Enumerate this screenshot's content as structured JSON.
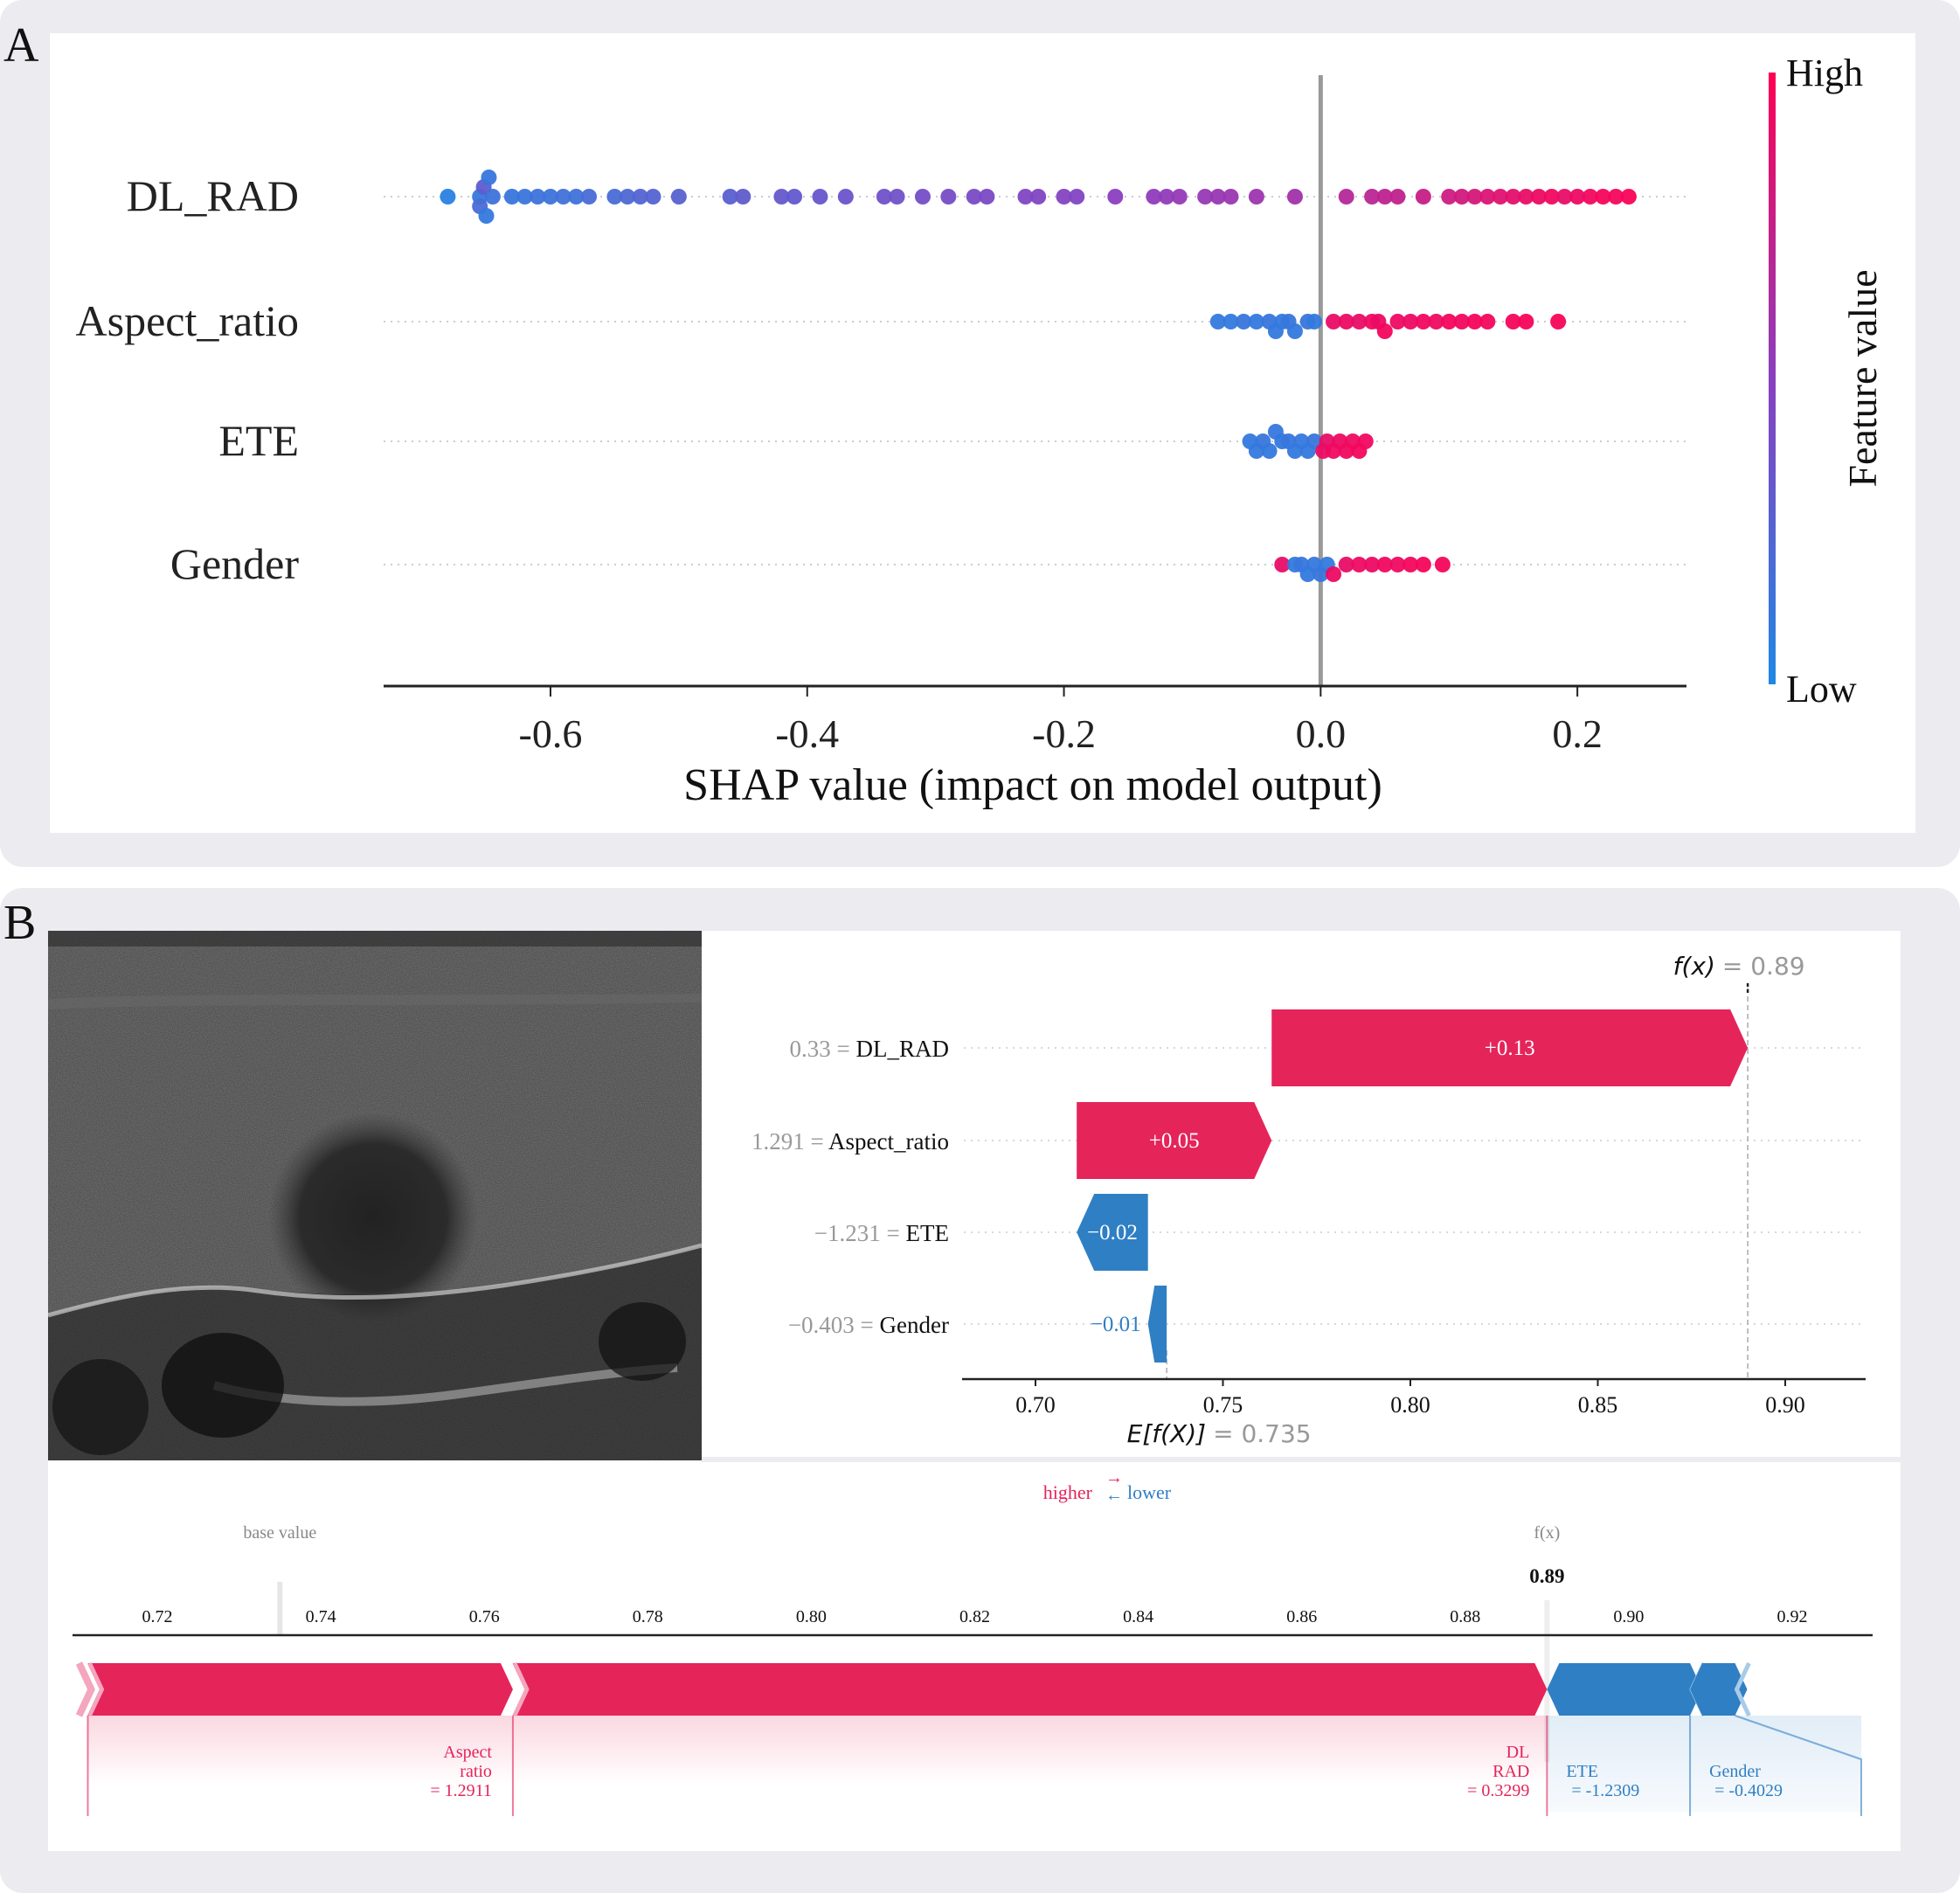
{
  "panel_a": {
    "letter": "A"
  },
  "panel_b": {
    "letter": "B"
  },
  "chart_data": [
    {
      "type": "scatter",
      "subtype": "shap-beeswarm",
      "xlabel": "SHAP value (impact on model output)",
      "xlim": [
        -0.73,
        0.285
      ],
      "xticks": [
        -0.6,
        -0.4,
        -0.2,
        0.0,
        0.2
      ],
      "xtick_labels": [
        "-0.6",
        "-0.4",
        "-0.2",
        "0.0",
        "0.2"
      ],
      "features": [
        "DL_RAD",
        "Aspect_ratio",
        "ETE",
        "Gender"
      ],
      "colorbar": {
        "label": "Feature value",
        "high": "High",
        "low": "Low",
        "high_color": "#ff0052",
        "low_color": "#1e88e5"
      },
      "series": [
        {
          "feature": "DL_RAD",
          "points": [
            [
              -0.68,
              0.05
            ],
            [
              -0.655,
              0.1
            ],
            [
              -0.655,
              0.2
            ],
            [
              -0.652,
              0.3
            ],
            [
              -0.65,
              0.1
            ],
            [
              -0.648,
              0.12
            ],
            [
              -0.645,
              0.15
            ],
            [
              -0.63,
              0.12
            ],
            [
              -0.62,
              0.13
            ],
            [
              -0.61,
              0.15
            ],
            [
              -0.6,
              0.14
            ],
            [
              -0.59,
              0.16
            ],
            [
              -0.58,
              0.15
            ],
            [
              -0.57,
              0.2
            ],
            [
              -0.55,
              0.2
            ],
            [
              -0.54,
              0.22
            ],
            [
              -0.53,
              0.24
            ],
            [
              -0.52,
              0.25
            ],
            [
              -0.5,
              0.27
            ],
            [
              -0.46,
              0.28
            ],
            [
              -0.45,
              0.3
            ],
            [
              -0.42,
              0.33
            ],
            [
              -0.41,
              0.32
            ],
            [
              -0.39,
              0.34
            ],
            [
              -0.37,
              0.36
            ],
            [
              -0.34,
              0.38
            ],
            [
              -0.33,
              0.38
            ],
            [
              -0.31,
              0.4
            ],
            [
              -0.29,
              0.41
            ],
            [
              -0.27,
              0.42
            ],
            [
              -0.26,
              0.43
            ],
            [
              -0.23,
              0.45
            ],
            [
              -0.22,
              0.46
            ],
            [
              -0.2,
              0.47
            ],
            [
              -0.19,
              0.46
            ],
            [
              -0.16,
              0.5
            ],
            [
              -0.13,
              0.52
            ],
            [
              -0.12,
              0.53
            ],
            [
              -0.11,
              0.54
            ],
            [
              -0.09,
              0.55
            ],
            [
              -0.08,
              0.56
            ],
            [
              -0.07,
              0.57
            ],
            [
              -0.05,
              0.58
            ],
            [
              -0.02,
              0.6
            ],
            [
              0.02,
              0.68
            ],
            [
              0.04,
              0.7
            ],
            [
              0.05,
              0.72
            ],
            [
              0.06,
              0.73
            ],
            [
              0.08,
              0.76
            ],
            [
              0.1,
              0.78
            ],
            [
              0.11,
              0.8
            ],
            [
              0.12,
              0.82
            ],
            [
              0.13,
              0.84
            ],
            [
              0.14,
              0.86
            ],
            [
              0.15,
              0.88
            ],
            [
              0.16,
              0.9
            ],
            [
              0.17,
              0.92
            ],
            [
              0.18,
              0.94
            ],
            [
              0.19,
              0.9
            ],
            [
              0.2,
              0.92
            ],
            [
              0.21,
              0.94
            ],
            [
              0.22,
              0.96
            ],
            [
              0.23,
              0.95
            ],
            [
              0.24,
              0.97
            ]
          ]
        },
        {
          "feature": "Aspect_ratio",
          "points": [
            [
              -0.08,
              0.1
            ],
            [
              -0.07,
              0.1
            ],
            [
              -0.06,
              0.12
            ],
            [
              -0.05,
              0.1
            ],
            [
              -0.04,
              0.12
            ],
            [
              -0.035,
              0.1
            ],
            [
              -0.03,
              0.1
            ],
            [
              -0.025,
              0.12
            ],
            [
              -0.02,
              0.1
            ],
            [
              -0.01,
              0.12
            ],
            [
              -0.005,
              0.1
            ],
            [
              0.01,
              0.9
            ],
            [
              0.02,
              0.92
            ],
            [
              0.03,
              0.9
            ],
            [
              0.04,
              0.93
            ],
            [
              0.045,
              0.92
            ],
            [
              0.05,
              0.95
            ],
            [
              0.06,
              0.93
            ],
            [
              0.07,
              0.92
            ],
            [
              0.08,
              0.94
            ],
            [
              0.09,
              0.93
            ],
            [
              0.1,
              0.95
            ],
            [
              0.11,
              0.94
            ],
            [
              0.12,
              0.96
            ],
            [
              0.13,
              0.95
            ],
            [
              0.15,
              0.96
            ],
            [
              0.16,
              0.97
            ],
            [
              0.185,
              0.97
            ]
          ]
        },
        {
          "feature": "ETE",
          "points": [
            [
              -0.055,
              0.1
            ],
            [
              -0.05,
              0.1
            ],
            [
              -0.045,
              0.12
            ],
            [
              -0.04,
              0.1
            ],
            [
              -0.035,
              0.11
            ],
            [
              -0.03,
              0.1
            ],
            [
              -0.025,
              0.12
            ],
            [
              -0.02,
              0.1
            ],
            [
              -0.015,
              0.11
            ],
            [
              -0.01,
              0.1
            ],
            [
              -0.005,
              0.12
            ],
            [
              0.002,
              0.92
            ],
            [
              0.005,
              0.9
            ],
            [
              0.01,
              0.93
            ],
            [
              0.015,
              0.92
            ],
            [
              0.02,
              0.94
            ],
            [
              0.025,
              0.93
            ],
            [
              0.03,
              0.95
            ],
            [
              0.035,
              0.94
            ]
          ]
        },
        {
          "feature": "Gender",
          "points": [
            [
              -0.03,
              0.9
            ],
            [
              -0.02,
              0.1
            ],
            [
              -0.015,
              0.12
            ],
            [
              -0.01,
              0.1
            ],
            [
              -0.005,
              0.1
            ],
            [
              0.0,
              0.12
            ],
            [
              0.005,
              0.1
            ],
            [
              0.01,
              0.92
            ],
            [
              0.02,
              0.9
            ],
            [
              0.03,
              0.93
            ],
            [
              0.04,
              0.92
            ],
            [
              0.05,
              0.94
            ],
            [
              0.06,
              0.93
            ],
            [
              0.07,
              0.95
            ],
            [
              0.08,
              0.96
            ],
            [
              0.095,
              0.96
            ]
          ]
        }
      ]
    },
    {
      "type": "bar",
      "subtype": "shap-waterfall",
      "fx_label": "f(x)",
      "fx_value": "= 0.89",
      "ex_label": "E[f(X)]",
      "ex_value": "= 0.735",
      "base_value": 0.735,
      "final_value": 0.89,
      "xlim": [
        0.68,
        0.92
      ],
      "xticks": [
        0.7,
        0.75,
        0.8,
        0.85,
        0.9
      ],
      "xtick_labels": [
        "0.70",
        "0.75",
        "0.80",
        "0.85",
        "0.90"
      ],
      "rows": [
        {
          "value_text": "0.33 =",
          "feature": "DL_RAD",
          "start": 0.763,
          "end": 0.89,
          "label": "+0.13",
          "sign": "pos"
        },
        {
          "value_text": "1.291 =",
          "feature": "Aspect_ratio",
          "start": 0.711,
          "end": 0.763,
          "label": "+0.05",
          "sign": "pos"
        },
        {
          "value_text": "−1.231 =",
          "feature": "ETE",
          "start": 0.73,
          "end": 0.711,
          "label": "−0.02",
          "sign": "neg"
        },
        {
          "value_text": "−0.403 =",
          "feature": "Gender",
          "start": 0.735,
          "end": 0.73,
          "label": "−0.01",
          "sign": "neg"
        }
      ],
      "colors": {
        "pos": "#e5245a",
        "neg": "#2f7fc4"
      }
    },
    {
      "type": "bar",
      "subtype": "shap-force",
      "higher_label": "higher",
      "lower_label": "lower",
      "base_value_label": "base value",
      "fx_label": "f(x)",
      "fx_value": "0.89",
      "base_value": 0.735,
      "final_value": 0.89,
      "xlim": [
        0.7115,
        0.9245
      ],
      "xticks": [
        0.72,
        0.74,
        0.76,
        0.78,
        0.8,
        0.82,
        0.84,
        0.86,
        0.88,
        0.9,
        0.92
      ],
      "xtick_labels": [
        "0.72",
        "0.74",
        "0.76",
        "0.78",
        "0.80",
        "0.82",
        "0.84",
        "0.86",
        "0.88",
        "0.90",
        "0.92"
      ],
      "segments": [
        {
          "feature": "Aspect_ratio",
          "from": 0.7115,
          "to": 0.7635,
          "sign": "pos",
          "label_lines": [
            "Aspect",
            "ratio",
            "= 1.2911"
          ]
        },
        {
          "feature": "DL_RAD",
          "from": 0.7635,
          "to": 0.89,
          "sign": "pos",
          "label_lines": [
            "DL",
            "RAD",
            "= 0.3299"
          ]
        },
        {
          "feature": "ETE",
          "from": 0.89,
          "to": 0.9075,
          "sign": "neg",
          "label_lines": [
            "ETE",
            "= -1.2309"
          ]
        },
        {
          "feature": "Gender",
          "from": 0.9075,
          "to": 0.913,
          "sign": "neg",
          "label_lines": [
            "Gender",
            "= -0.4029"
          ]
        }
      ],
      "colors": {
        "pos": "#e5245a",
        "neg": "#2f7fc4"
      }
    }
  ]
}
